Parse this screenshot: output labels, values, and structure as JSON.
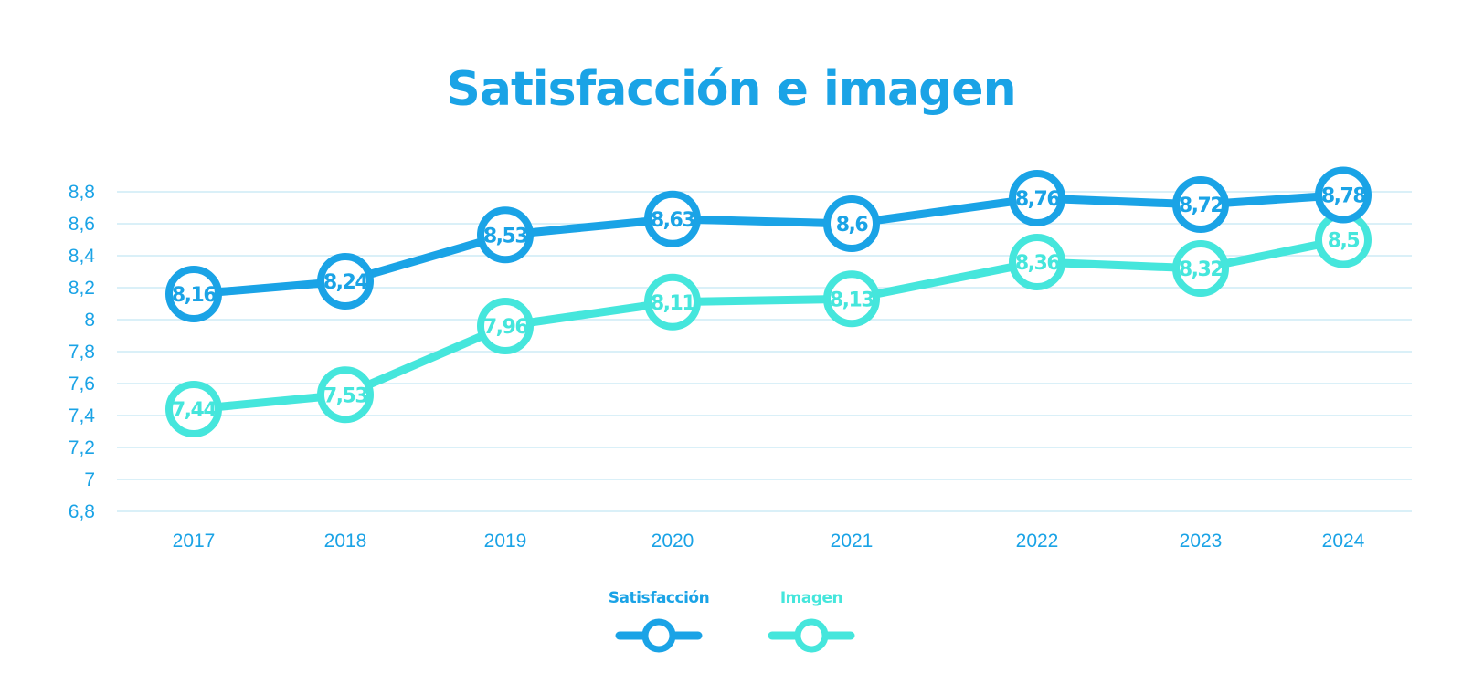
{
  "chart_data": {
    "type": "line",
    "title": "Satisfacción e imagen",
    "xlabel": "",
    "ylabel": "",
    "categories": [
      "2017",
      "2018",
      "2019",
      "2020",
      "2021",
      "2022",
      "2023",
      "2024"
    ],
    "ylim": [
      6.8,
      8.8
    ],
    "yticks": [
      {
        "value": 6.8,
        "label": "6,8"
      },
      {
        "value": 7.0,
        "label": "7"
      },
      {
        "value": 7.2,
        "label": "7,2"
      },
      {
        "value": 7.4,
        "label": "7,4"
      },
      {
        "value": 7.6,
        "label": "7,6"
      },
      {
        "value": 7.8,
        "label": "7,8"
      },
      {
        "value": 8.0,
        "label": "8"
      },
      {
        "value": 8.2,
        "label": "8,2"
      },
      {
        "value": 8.4,
        "label": "8,4"
      },
      {
        "value": 8.6,
        "label": "8,6"
      },
      {
        "value": 8.8,
        "label": "8,8"
      }
    ],
    "grid": true,
    "legend_position": "bottom-center",
    "series": [
      {
        "name": "Satisfacción",
        "color": "#1aa3e6",
        "values": [
          8.16,
          8.24,
          8.53,
          8.63,
          8.6,
          8.76,
          8.72,
          8.78
        ],
        "labels": [
          "8,16",
          "8,24",
          "8,53",
          "8,63",
          "8,6",
          "8,76",
          "8,72",
          "8,78"
        ]
      },
      {
        "name": "Imagen",
        "color": "#45e6dc",
        "values": [
          7.44,
          7.53,
          7.96,
          8.11,
          8.13,
          8.36,
          8.32,
          8.5
        ],
        "labels": [
          "7,44",
          "7,53",
          "7,96",
          "8,11",
          "8,13",
          "8,36",
          "8,32",
          "8,5"
        ]
      }
    ],
    "colors": {
      "axis_text": "#1aa3e6",
      "grid": "#c4e6f4"
    }
  }
}
